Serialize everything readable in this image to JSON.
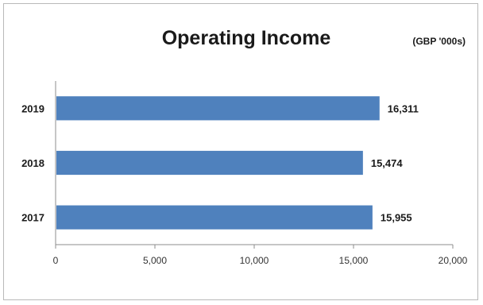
{
  "chart_data": {
    "type": "bar",
    "orientation": "horizontal",
    "title": "Operating Income",
    "subtitle": "(GBP '000s)",
    "xlabel": "",
    "ylabel": "",
    "categories": [
      "2019",
      "2018",
      "2017"
    ],
    "values": [
      16311,
      15474,
      15955
    ],
    "value_labels": [
      "16,311",
      "15,474",
      "15,955"
    ],
    "xlim": [
      0,
      20000
    ],
    "x_ticks": [
      0,
      5000,
      10000,
      15000,
      20000
    ],
    "x_tick_labels": [
      "0",
      "5,000",
      "10,000",
      "15,000",
      "20,000"
    ],
    "grid": false,
    "legend": "none",
    "bar_color": "#4f81bd"
  }
}
